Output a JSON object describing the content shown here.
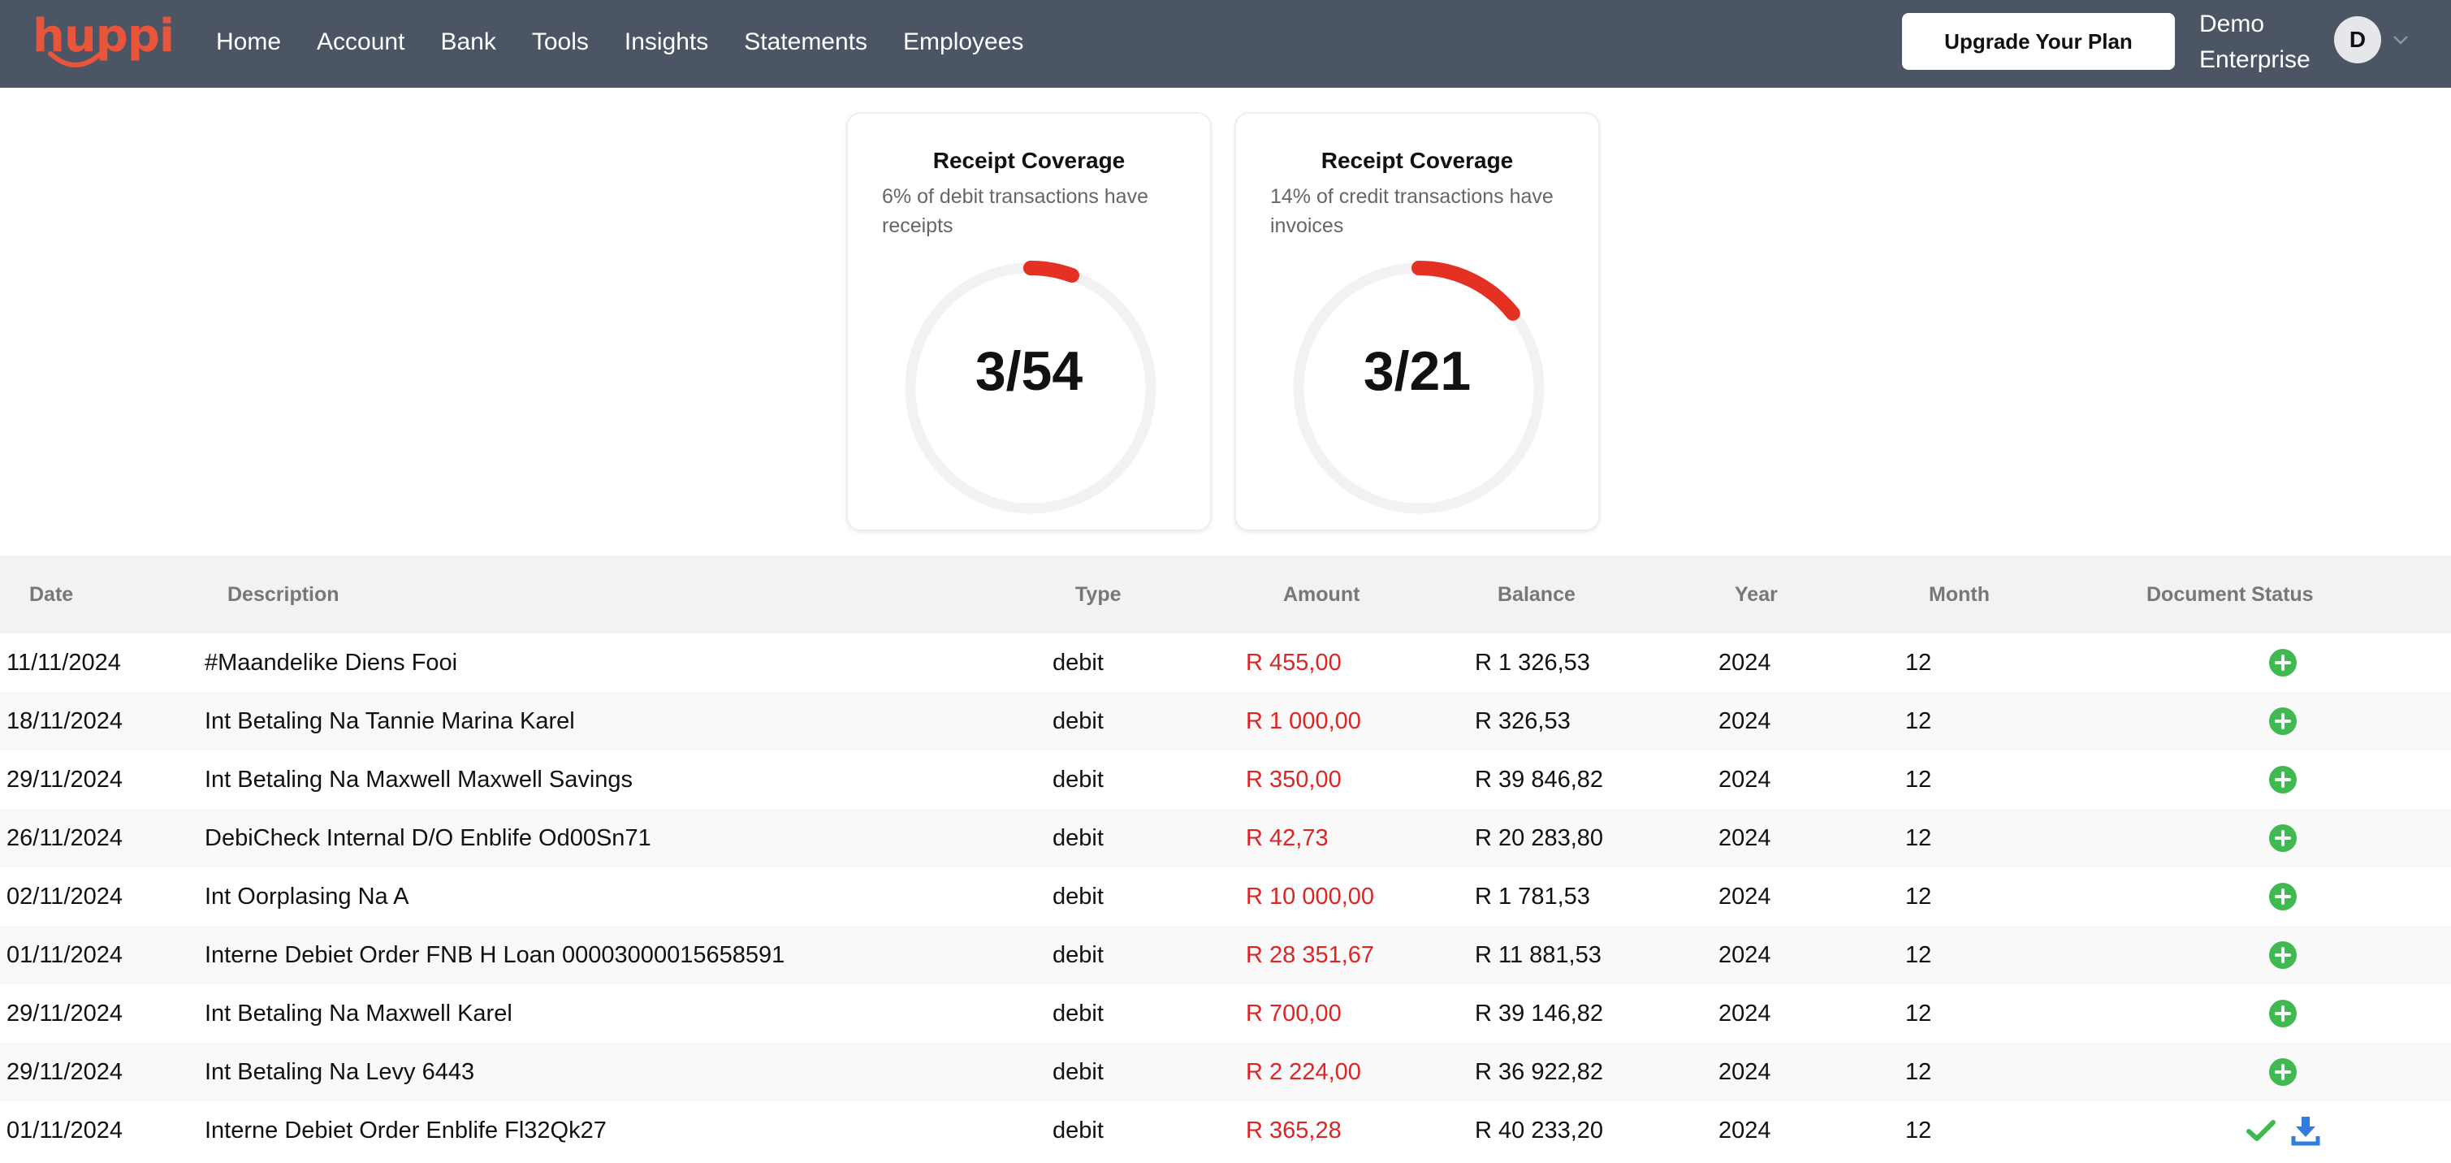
{
  "colors": {
    "navbar": "#4b5563",
    "brand": "#e8553b",
    "ring_progress": "#e53124",
    "ring_track": "#f2f2f2",
    "amount_red": "#e02424",
    "status_green": "#3fb950",
    "download_blue": "#2f7de1"
  },
  "navbar": {
    "logo": "huppi",
    "links": [
      "Home",
      "Account",
      "Bank",
      "Tools",
      "Insights",
      "Statements",
      "Employees"
    ],
    "upgrade_label": "Upgrade Your Plan",
    "user_name": "Demo Enterprise",
    "avatar_initial": "D",
    "dropdown_icon": "chevron-down-icon"
  },
  "cards": [
    {
      "title": "Receipt Coverage",
      "subtitle": "6% of debit transactions have receipts",
      "value": "3/54",
      "fraction": 0.056
    },
    {
      "title": "Receipt Coverage",
      "subtitle": "14% of credit transactions have invoices",
      "value": "3/21",
      "fraction": 0.143
    }
  ],
  "table": {
    "columns": [
      "Date",
      "Description",
      "Type",
      "Amount",
      "Balance",
      "Year",
      "Month",
      "Document Status"
    ],
    "rows": [
      {
        "date": "11/11/2024",
        "description": "#Maandelike Diens Fooi",
        "type": "debit",
        "amount": "R 455,00",
        "balance": "R 1 326,53",
        "year": "2024",
        "month": "12",
        "status": "add"
      },
      {
        "date": "18/11/2024",
        "description": "Int Betaling Na Tannie Marina Karel",
        "type": "debit",
        "amount": "R 1 000,00",
        "balance": "R 326,53",
        "year": "2024",
        "month": "12",
        "status": "add"
      },
      {
        "date": "29/11/2024",
        "description": "Int Betaling Na Maxwell Maxwell Savings",
        "type": "debit",
        "amount": "R 350,00",
        "balance": "R 39 846,82",
        "year": "2024",
        "month": "12",
        "status": "add"
      },
      {
        "date": "26/11/2024",
        "description": "DebiCheck Internal D/O Enblife Od00Sn71",
        "type": "debit",
        "amount": "R 42,73",
        "balance": "R 20 283,80",
        "year": "2024",
        "month": "12",
        "status": "add"
      },
      {
        "date": "02/11/2024",
        "description": "Int Oorplasing Na A",
        "type": "debit",
        "amount": "R 10 000,00",
        "balance": "R 1 781,53",
        "year": "2024",
        "month": "12",
        "status": "add"
      },
      {
        "date": "01/11/2024",
        "description": "Interne Debiet Order FNB H Loan 00003000015658591",
        "type": "debit",
        "amount": "R 28 351,67",
        "balance": "R 11 881,53",
        "year": "2024",
        "month": "12",
        "status": "add"
      },
      {
        "date": "29/11/2024",
        "description": "Int Betaling Na Maxwell Karel",
        "type": "debit",
        "amount": "R 700,00",
        "balance": "R 39 146,82",
        "year": "2024",
        "month": "12",
        "status": "add"
      },
      {
        "date": "29/11/2024",
        "description": "Int Betaling Na Levy 6443",
        "type": "debit",
        "amount": "R 2 224,00",
        "balance": "R 36 922,82",
        "year": "2024",
        "month": "12",
        "status": "add"
      },
      {
        "date": "01/11/2024",
        "description": "Interne Debiet Order Enblife Fl32Qk27",
        "type": "debit",
        "amount": "R 365,28",
        "balance": "R 40 233,20",
        "year": "2024",
        "month": "12",
        "status": "uploaded"
      }
    ]
  }
}
